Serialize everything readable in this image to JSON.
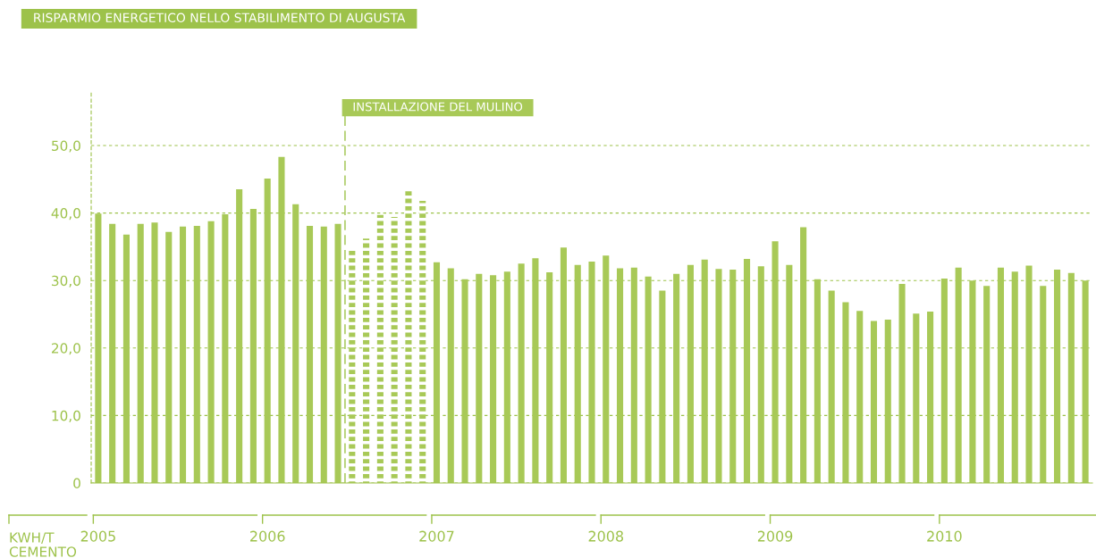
{
  "chart_data": {
    "type": "bar",
    "title": "RISPARMIO ENERGETICO NELLO STABILIMENTO DI AUGUSTA",
    "ylabel": "KWH/T CEMENTO",
    "categories": [
      "2005",
      null,
      null,
      null,
      null,
      null,
      null,
      null,
      null,
      null,
      null,
      null,
      "2006",
      null,
      null,
      null,
      null,
      null,
      null,
      null,
      null,
      null,
      null,
      null,
      "2007",
      null,
      null,
      null,
      null,
      null,
      null,
      null,
      null,
      null,
      null,
      null,
      "2008",
      null,
      null,
      null,
      null,
      null,
      null,
      null,
      null,
      null,
      null,
      null,
      "2009",
      null,
      null,
      null,
      null,
      null,
      null,
      null,
      null,
      null,
      null,
      null,
      "2010",
      null,
      null,
      null,
      null,
      null,
      null,
      null,
      null,
      null,
      null
    ],
    "series": [
      {
        "color": "#a8c957",
        "values": [
          39.9,
          38.4,
          36.8,
          38.4,
          38.6,
          37.2,
          38.0,
          38.1,
          38.8,
          39.8,
          43.5,
          40.6,
          45.1,
          48.3,
          41.3,
          38.1,
          38.0,
          38.4,
          null,
          null,
          null,
          null,
          null,
          null,
          32.7,
          31.8,
          30.2,
          31.0,
          30.8,
          31.3,
          32.5,
          33.3,
          31.2,
          34.9,
          32.3,
          32.8,
          33.7,
          31.8,
          31.9,
          30.6,
          28.5,
          31.0,
          32.3,
          33.1,
          31.7,
          31.6,
          33.2,
          32.1,
          35.8,
          32.3,
          37.9,
          30.2,
          28.5,
          26.8,
          25.5,
          24.0,
          24.2,
          29.5,
          25.1,
          25.4,
          30.3,
          31.9,
          30.0,
          29.2,
          31.9,
          31.3,
          32.2,
          29.2,
          31.6,
          31.1,
          30.0
        ]
      },
      {
        "name": "INSTALLAZIONE DEL MULINO",
        "color": "#a8c957",
        "line_style": "dashed",
        "values": [
          null,
          null,
          null,
          null,
          null,
          null,
          null,
          null,
          null,
          null,
          null,
          null,
          null,
          null,
          null,
          null,
          null,
          null,
          34.8,
          36.2,
          39.7,
          39.4,
          43.6,
          41.8,
          null,
          null,
          null,
          null,
          null,
          null,
          null,
          null,
          null,
          null,
          null,
          null,
          null,
          null,
          null,
          null,
          null,
          null,
          null,
          null,
          null,
          null,
          null,
          null,
          null,
          null,
          null,
          null,
          null,
          null,
          null,
          null,
          null,
          null,
          null,
          null,
          null,
          null,
          null,
          null,
          null,
          null,
          null,
          null,
          null,
          null,
          null
        ]
      }
    ],
    "ylim": [
      0,
      58
    ],
    "yticks": [
      {
        "value": 0,
        "label": "0"
      },
      {
        "value": 10,
        "label": "10,0"
      },
      {
        "value": 20,
        "label": "20,0"
      },
      {
        "value": 30,
        "label": "30,0"
      },
      {
        "value": 40,
        "label": "40,0"
      },
      {
        "value": 50,
        "label": "50,0"
      }
    ],
    "grid": "y"
  }
}
